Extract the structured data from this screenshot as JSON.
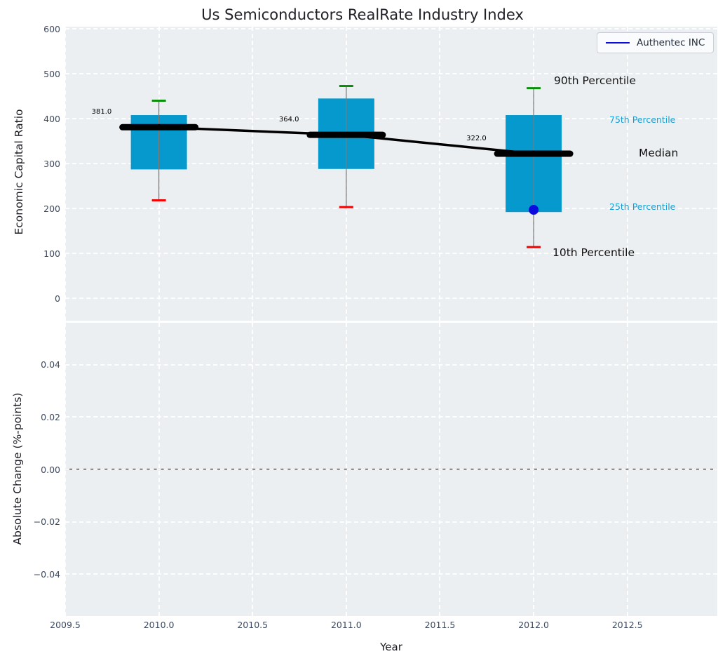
{
  "title": "Us Semiconductors RealRate Industry Index",
  "legend": {
    "label": "Authentec INC",
    "line_color": "#0b0be0",
    "position": "upper right"
  },
  "annotations": {
    "p90": "90th Percentile",
    "p75": "75th Percentile",
    "median": "Median",
    "p25": "25th Percentile",
    "p10": "10th Percentile"
  },
  "colors": {
    "box_fill": "#0699ce",
    "cap_top": "#0a8f0a",
    "cap_bottom": "#f50000",
    "median_line": "#000000",
    "whisker": "#7a7a7a",
    "marker": "#0b0be0",
    "annotation_accent": "#17a0d4",
    "axes_bg": "#ebeff1",
    "grid": "#ffffff",
    "tick_text": "#3e4a5f",
    "zero_line": "#000000"
  },
  "chart_data": [
    {
      "type": "boxplot",
      "title": "Us Semiconductors RealRate Industry Index",
      "xlabel": "Year",
      "ylabel": "Economic Capital Ratio",
      "grid": true,
      "legend_position": "upper right",
      "x_ticks": [
        "2009.5",
        "2010.0",
        "2010.5",
        "2011.0",
        "2011.5",
        "2012.0",
        "2012.5"
      ],
      "x_tick_values": [
        2009.5,
        2010.0,
        2010.5,
        2011.0,
        2011.5,
        2012.0,
        2012.5
      ],
      "y_ticks": [
        "600",
        "500",
        "400",
        "300",
        "200",
        "100",
        "0"
      ],
      "y_tick_values": [
        600,
        500,
        400,
        300,
        200,
        100,
        0
      ],
      "xlim": [
        2009.5,
        2012.98
      ],
      "ylim": [
        -50,
        605
      ],
      "boxes": [
        {
          "x": 2010,
          "p10": 218,
          "p25": 287,
          "median": 381,
          "p75": 408,
          "p90": 440,
          "median_label": "381.0"
        },
        {
          "x": 2011,
          "p10": 203,
          "p25": 288,
          "median": 364,
          "p75": 445,
          "p90": 473,
          "median_label": "364.0"
        },
        {
          "x": 2012,
          "p10": 114,
          "p25": 192,
          "median": 322,
          "p75": 408,
          "p90": 468,
          "median_label": "322.0"
        }
      ],
      "median_trend": [
        381,
        364,
        322
      ],
      "series": [
        {
          "name": "Authentec INC",
          "points": [
            {
              "x": 2012,
              "y": 197
            }
          ]
        }
      ]
    },
    {
      "type": "line",
      "xlabel": "Year",
      "ylabel": "Absolute Change (%-points)",
      "grid": true,
      "y_ticks": [
        "0.04",
        "0.02",
        "0.00",
        "−0.02",
        "−0.04"
      ],
      "y_tick_values": [
        0.04,
        0.02,
        0.0,
        -0.02,
        -0.04
      ],
      "ylim": [
        -0.056,
        0.056
      ],
      "zero_line": 0.0,
      "series": []
    }
  ]
}
